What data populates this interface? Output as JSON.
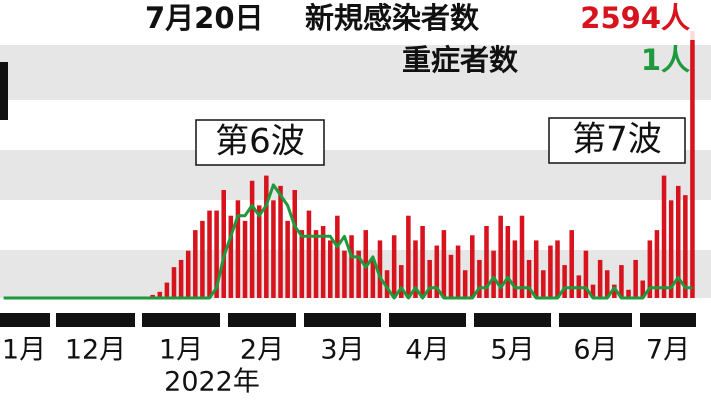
{
  "chart_data": {
    "type": "bar",
    "latest": {
      "date": "7月20日",
      "cases_label": "2594人",
      "severe_label": "1人"
    },
    "annotations": [
      "第6波",
      "第7波"
    ],
    "months": [
      "1月",
      "12月",
      "1月",
      "2月",
      "3月",
      "4月",
      "5月",
      "6月",
      "7月"
    ],
    "year_label": "2022年",
    "ylim": [
      0,
      2800
    ],
    "y2lim": [
      0,
      28
    ],
    "series": [
      {
        "name": "新規感染者数",
        "color": "#d7141e",
        "values": [
          0,
          0,
          0,
          0,
          0,
          0,
          0,
          0,
          0,
          0,
          0,
          0,
          0,
          0,
          0,
          0,
          0,
          0,
          0,
          0,
          0,
          30,
          60,
          150,
          300,
          370,
          460,
          660,
          750,
          850,
          850,
          1050,
          800,
          950,
          750,
          1140,
          900,
          1190,
          950,
          1090,
          750,
          1050,
          660,
          850,
          660,
          700,
          560,
          800,
          460,
          610,
          460,
          660,
          370,
          560,
          270,
          610,
          320,
          800,
          560,
          700,
          370,
          510,
          660,
          420,
          510,
          270,
          610,
          370,
          700,
          460,
          800,
          700,
          560,
          800,
          370,
          560,
          270,
          510,
          560,
          320,
          660,
          220,
          460,
          130,
          370,
          270,
          130,
          320,
          80,
          370,
          170,
          560,
          660,
          1190,
          950,
          1090,
          1000,
          2594
        ]
      },
      {
        "name": "重症者数",
        "color": "#1e9a3c",
        "axis": "y2",
        "values": [
          0,
          0,
          0,
          0,
          0,
          0,
          0,
          0,
          0,
          0,
          0,
          0,
          0,
          0,
          0,
          0,
          0,
          0,
          0,
          0,
          0,
          0,
          0,
          0,
          0,
          0,
          0,
          0,
          0,
          0,
          1,
          4,
          6,
          8,
          8,
          9,
          8,
          9,
          11,
          10,
          9,
          7,
          6,
          6,
          6,
          6,
          6,
          5,
          6,
          4,
          4,
          3,
          4,
          2,
          1,
          0,
          1,
          0,
          1,
          0,
          1,
          1,
          0,
          0,
          0,
          0,
          0,
          1,
          1,
          2,
          1,
          2,
          1,
          1,
          1,
          0,
          0,
          0,
          0,
          1,
          1,
          1,
          1,
          0,
          0,
          0,
          1,
          0,
          0,
          0,
          0,
          1,
          1,
          1,
          1,
          2,
          1,
          1
        ]
      }
    ]
  }
}
